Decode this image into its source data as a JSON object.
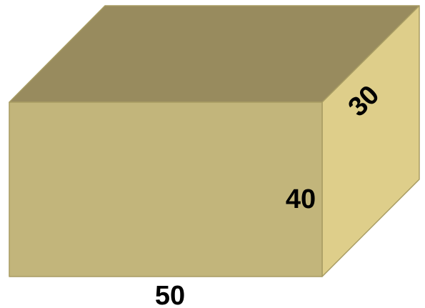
{
  "box": {
    "length_label": "50",
    "height_label": "40",
    "depth_label": "30"
  },
  "colors": {
    "top_face": "#988B5E",
    "front_face": "#C2B57B",
    "side_face": "#DECE8A",
    "edge": "#A89C63",
    "label": "#000000"
  }
}
